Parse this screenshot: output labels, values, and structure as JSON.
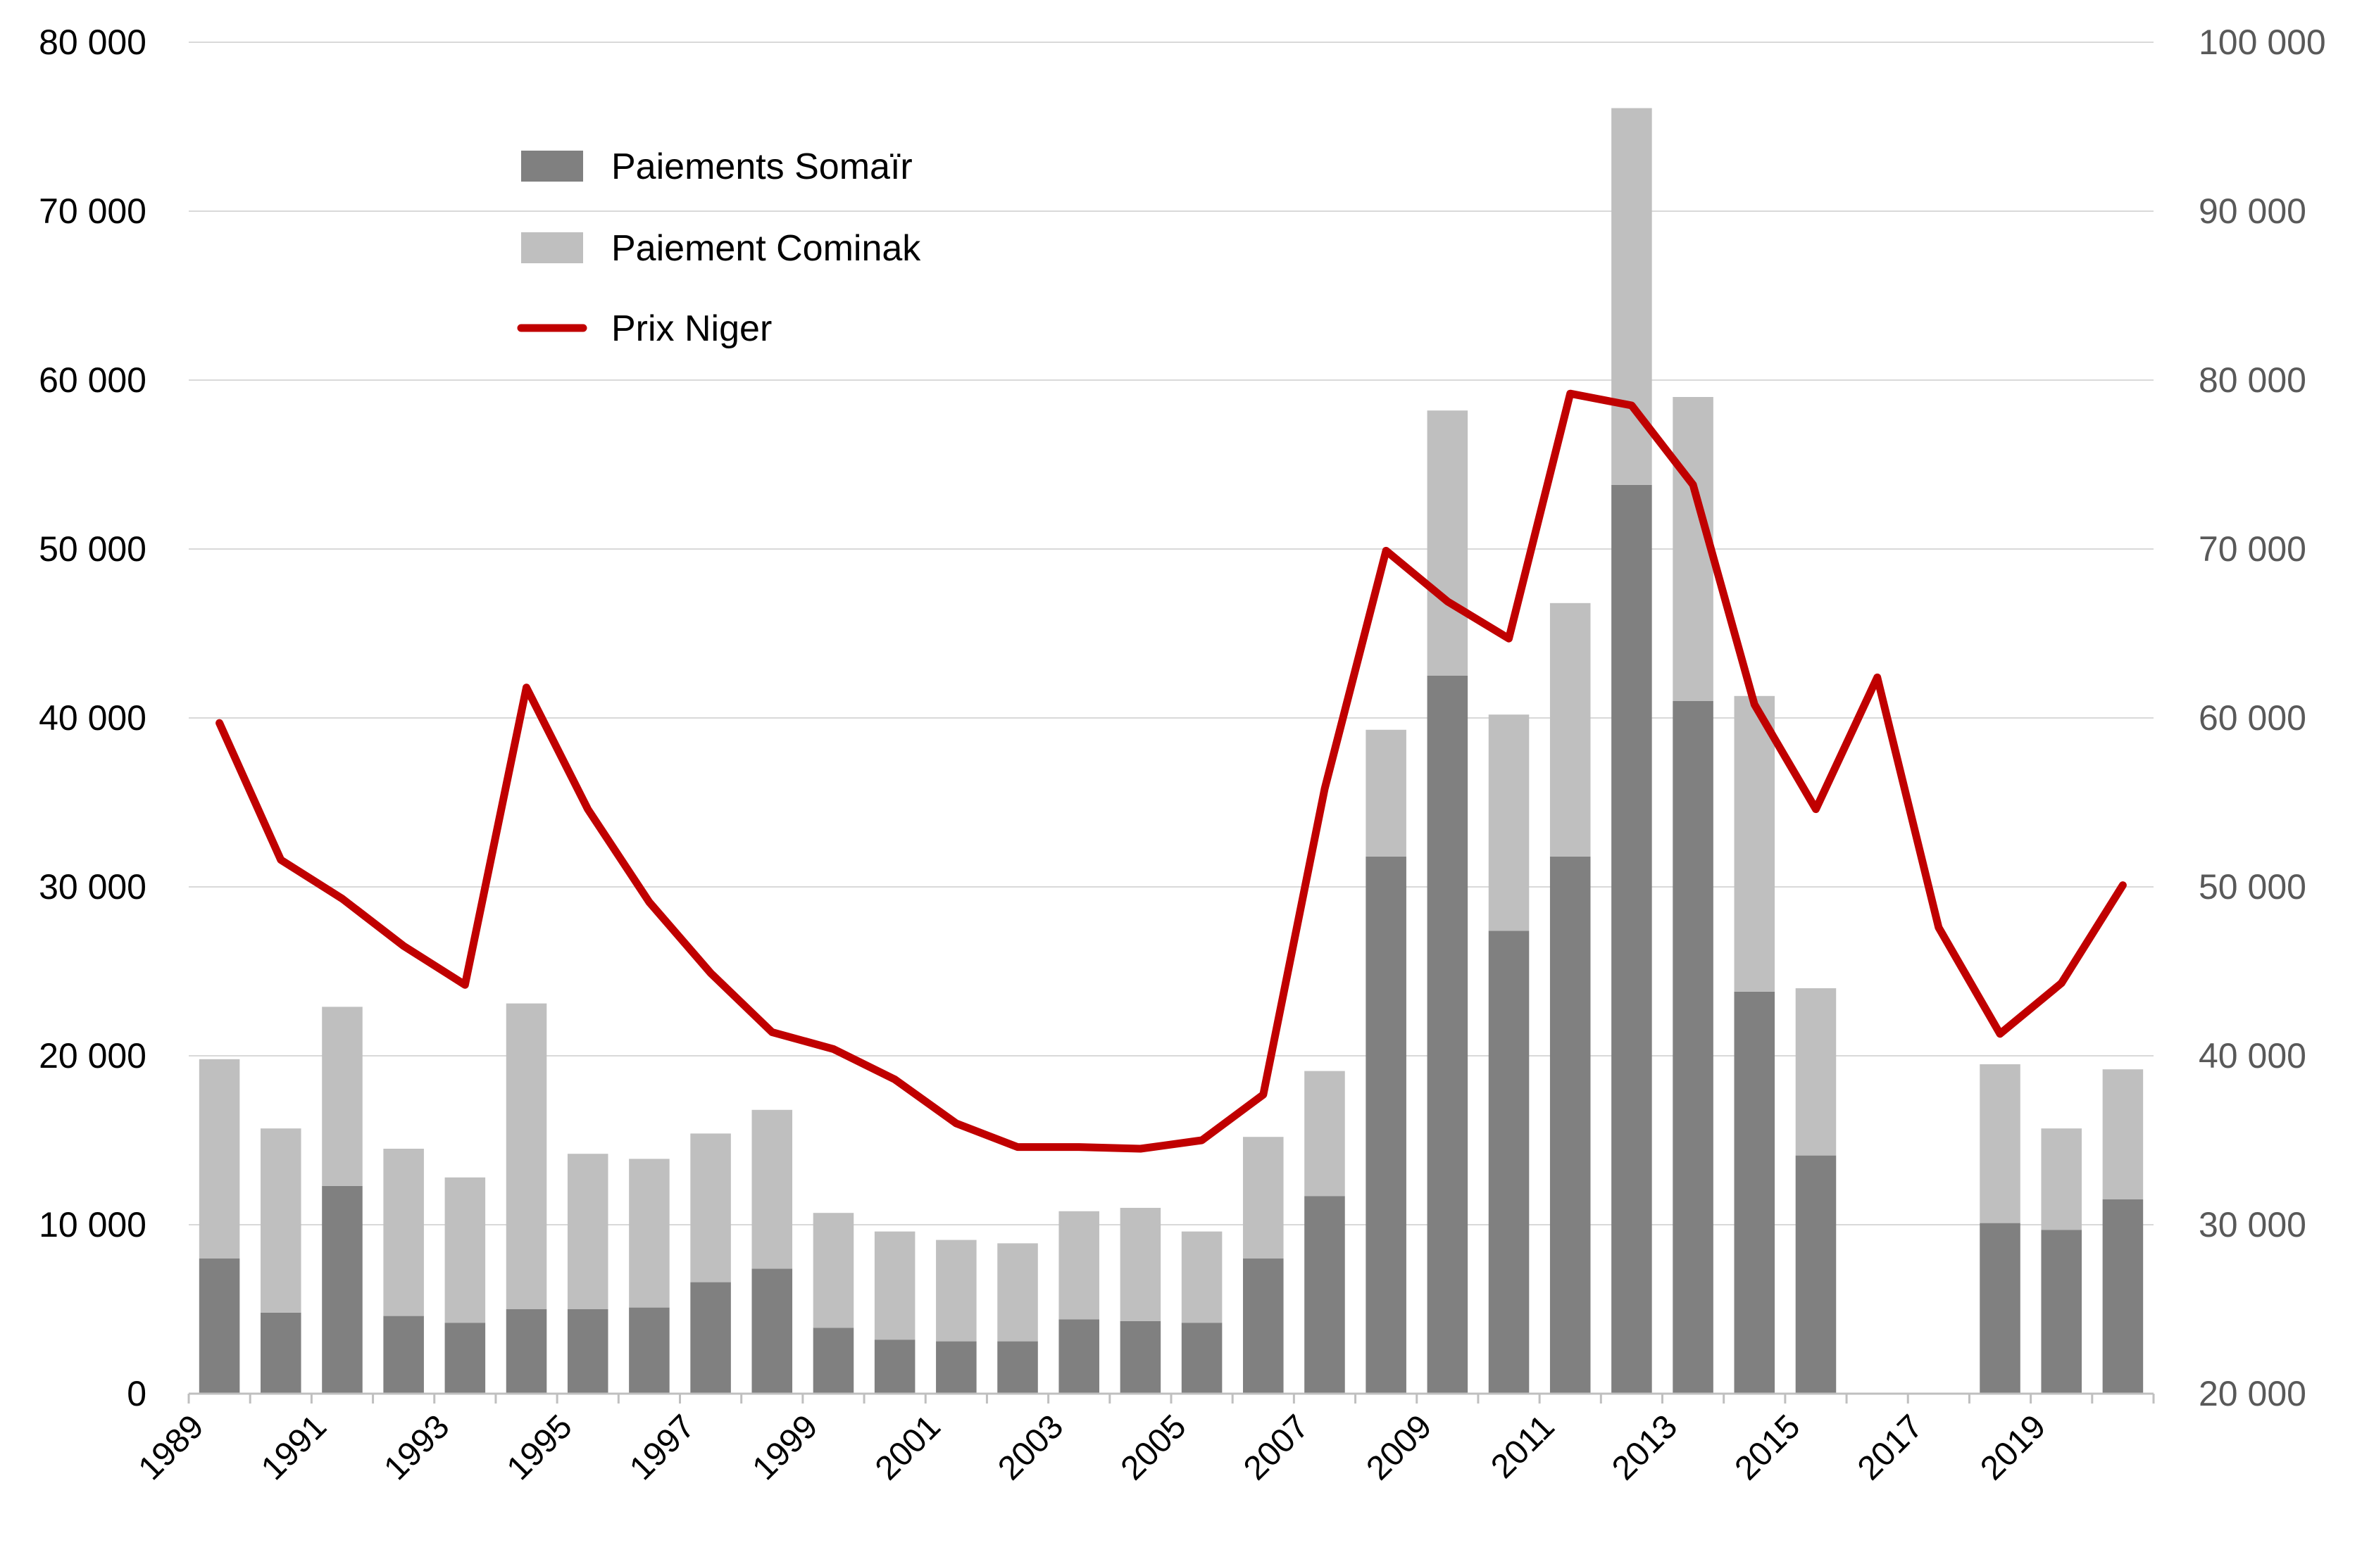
{
  "chart_data": {
    "type": "bar",
    "stacked": true,
    "categories": [
      "1989",
      "1990",
      "1991",
      "1992",
      "1993",
      "1994",
      "1995",
      "1996",
      "1997",
      "1998",
      "1999",
      "2000",
      "2001",
      "2002",
      "2003",
      "2004",
      "2005",
      "2006",
      "2007",
      "2008",
      "2009",
      "2010",
      "2011",
      "2012",
      "2013",
      "2014",
      "2015",
      "2016",
      "2017",
      "2018",
      "2019",
      "2020"
    ],
    "x_tick_labels": [
      "1989",
      "1991",
      "1993",
      "1995",
      "1997",
      "1999",
      "2001",
      "2003",
      "2005",
      "2007",
      "2009",
      "2011",
      "2013",
      "2015",
      "2017",
      "2019"
    ],
    "series": [
      {
        "name": "Paiements Somaïr",
        "axis": "left",
        "color": "#808080",
        "values": [
          8000,
          4800,
          12300,
          4600,
          4200,
          5000,
          5000,
          5100,
          6600,
          7400,
          3900,
          3200,
          3100,
          3100,
          4400,
          4300,
          4200,
          8000,
          11700,
          31800,
          42500,
          27400,
          31800,
          53800,
          41000,
          23800,
          14100,
          0,
          0,
          10100,
          9700,
          11500
        ]
      },
      {
        "name": "Paiement Cominak",
        "axis": "left",
        "color": "#bfbfbf",
        "values": [
          11800,
          10900,
          10600,
          9900,
          8600,
          18100,
          9200,
          8800,
          8800,
          9400,
          6800,
          6400,
          6000,
          5800,
          6400,
          6700,
          5400,
          7200,
          7400,
          7500,
          15700,
          12800,
          15000,
          22300,
          18000,
          17500,
          9900,
          0,
          0,
          9400,
          6000,
          7700
        ]
      },
      {
        "name": "Prix Niger",
        "type": "line",
        "axis": "right",
        "color": "#c00000",
        "values": [
          59700,
          51600,
          49300,
          46500,
          44200,
          61800,
          54600,
          49100,
          44900,
          41400,
          40400,
          38600,
          36000,
          34600,
          34600,
          34500,
          35000,
          37700,
          55800,
          69900,
          66900,
          64700,
          79200,
          78500,
          73800,
          60800,
          54600,
          62400,
          47600,
          41300,
          44300,
          50100
        ]
      }
    ],
    "left_axis": {
      "ylim": [
        0,
        80000
      ],
      "ticks": [
        "0",
        "10 000",
        "20 000",
        "30 000",
        "40 000",
        "50 000",
        "60 000",
        "70 000",
        "80 000"
      ]
    },
    "right_axis": {
      "ylim": [
        20000,
        100000
      ],
      "ticks": [
        "20 000",
        "30 000",
        "40 000",
        "50 000",
        "60 000",
        "70 000",
        "80 000",
        "90 000",
        "100 000"
      ]
    },
    "grid": true,
    "legend_position": "top-left"
  }
}
